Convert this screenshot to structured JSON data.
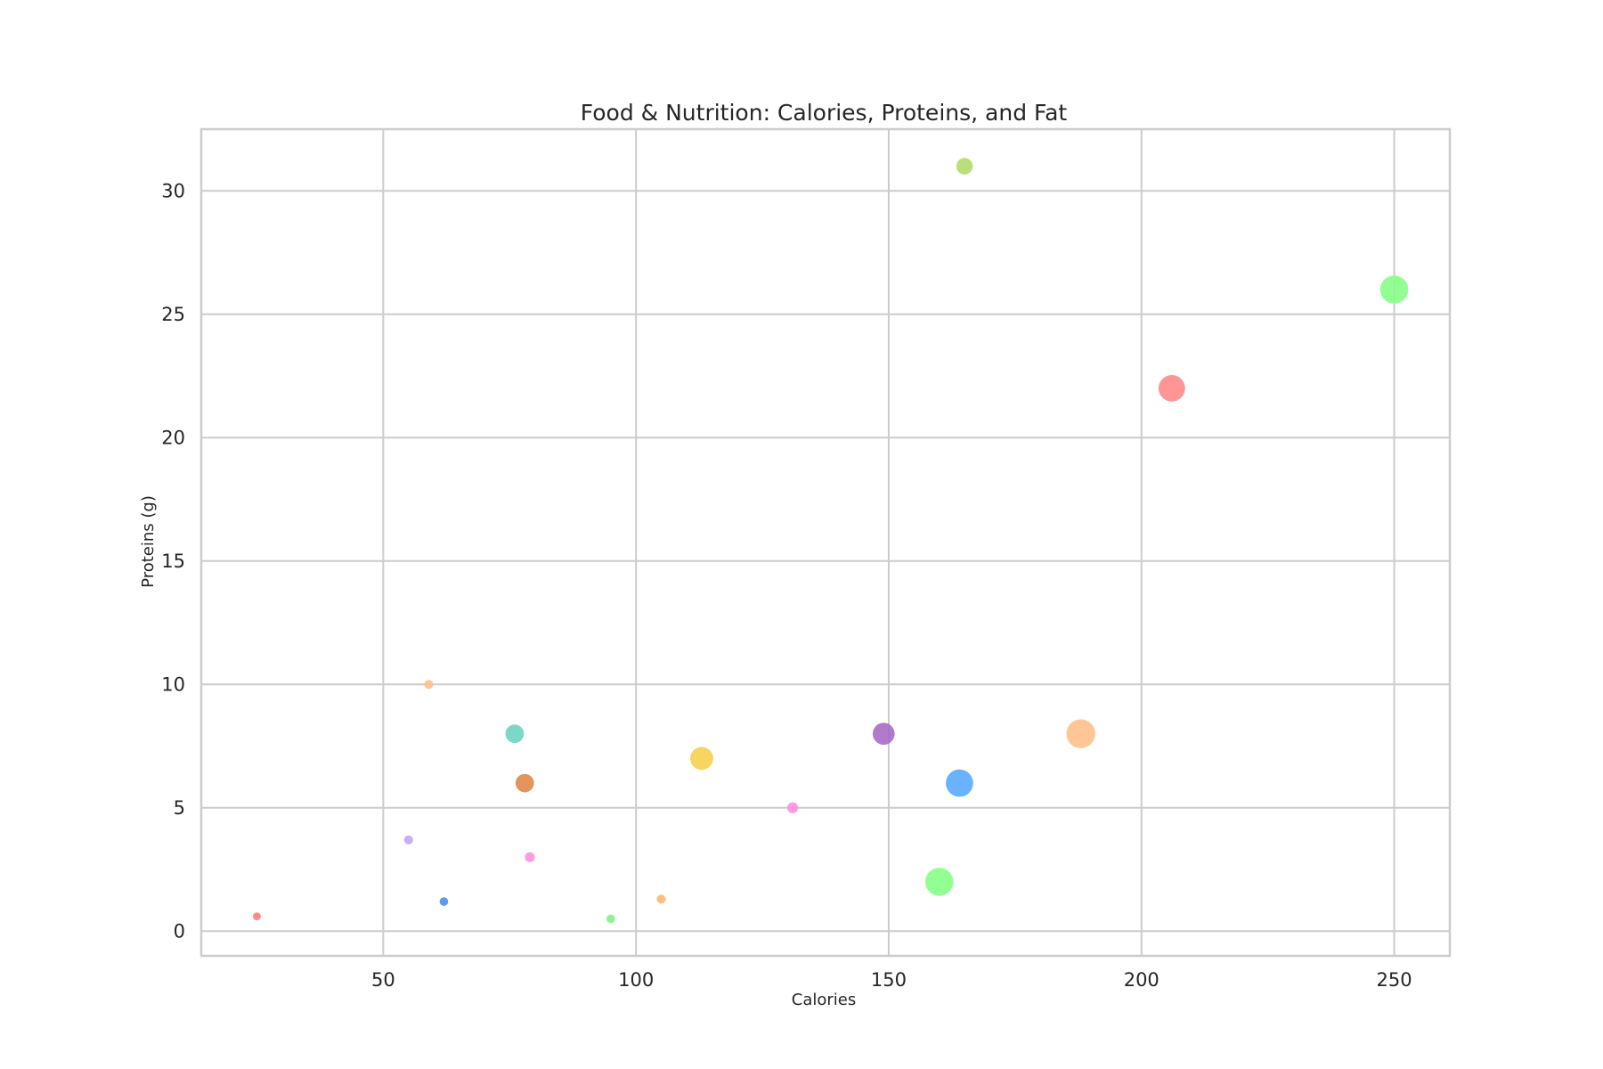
{
  "chart_data": {
    "type": "scatter",
    "title": "Food & Nutrition: Calories, Proteins, and Fat",
    "xlabel": "Calories",
    "ylabel": "Proteins (g)",
    "xlim": [
      14,
      261
    ],
    "ylim": [
      -1,
      32.5
    ],
    "xticks": [
      50,
      100,
      150,
      200,
      250
    ],
    "yticks": [
      0,
      5,
      10,
      15,
      20,
      25,
      30
    ],
    "grid": true,
    "legend": "none",
    "size_encoding": "Fat",
    "points": [
      {
        "x": 25,
        "y": 0.6,
        "fat": 0.2,
        "color": "#ff8080"
      },
      {
        "x": 55,
        "y": 3.7,
        "fat": 0.4,
        "color": "#c5a6f0"
      },
      {
        "x": 59,
        "y": 10,
        "fat": 0.4,
        "color": "#ffc08a"
      },
      {
        "x": 62,
        "y": 1.2,
        "fat": 0.3,
        "color": "#4a90e8"
      },
      {
        "x": 76,
        "y": 8,
        "fat": 5,
        "color": "#6dd3c0"
      },
      {
        "x": 78,
        "y": 6,
        "fat": 5,
        "color": "#e08a4c"
      },
      {
        "x": 79,
        "y": 3,
        "fat": 0.6,
        "color": "#ff90e0"
      },
      {
        "x": 95,
        "y": 0.5,
        "fat": 0.3,
        "color": "#86ef86"
      },
      {
        "x": 105,
        "y": 1.3,
        "fat": 0.4,
        "color": "#ffb870"
      },
      {
        "x": 113,
        "y": 7,
        "fat": 9,
        "color": "#f5d050"
      },
      {
        "x": 131,
        "y": 5,
        "fat": 0.9,
        "color": "#ff90e0"
      },
      {
        "x": 149,
        "y": 8,
        "fat": 8,
        "color": "#a86cc8"
      },
      {
        "x": 160,
        "y": 2,
        "fat": 15,
        "color": "#86ff86"
      },
      {
        "x": 164,
        "y": 6,
        "fat": 14,
        "color": "#5aa8ff"
      },
      {
        "x": 165,
        "y": 31,
        "fat": 3.6,
        "color": "#b2dc6c"
      },
      {
        "x": 188,
        "y": 8,
        "fat": 16,
        "color": "#ffc08a"
      },
      {
        "x": 206,
        "y": 22,
        "fat": 13,
        "color": "#ff8a8a"
      },
      {
        "x": 250,
        "y": 26,
        "fat": 15,
        "color": "#86ff86"
      }
    ]
  }
}
